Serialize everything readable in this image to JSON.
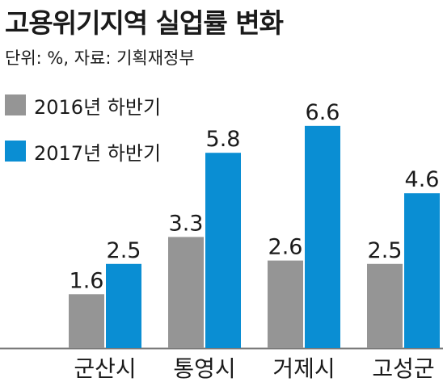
{
  "colors": {
    "series_2016": "#959595",
    "series_2017": "#0a8ed3",
    "text": "#1a1a1a",
    "axis": "#7a7a7a"
  },
  "chart_data": {
    "type": "bar",
    "title": "고용위기지역 실업률 변화",
    "subtitle": "단위: %, 자료: 기획재정부",
    "categories": [
      "군산시",
      "통영시",
      "거제시",
      "고성군"
    ],
    "series": [
      {
        "name": "2016년 하반기",
        "values": [
          1.6,
          3.3,
          2.6,
          2.5
        ]
      },
      {
        "name": "2017년 하반기",
        "values": [
          2.5,
          5.8,
          6.6,
          4.6
        ]
      }
    ],
    "ylim": [
      0,
      7.1
    ],
    "grid": false,
    "legend": "top-left",
    "data_labels": true
  }
}
